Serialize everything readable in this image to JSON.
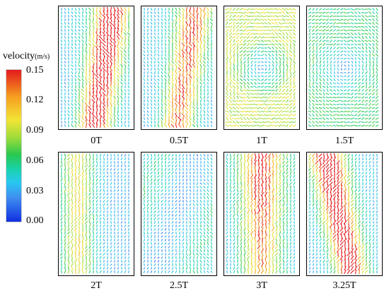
{
  "legend": {
    "title": "velocity",
    "unit": "(m/s)",
    "ticks": [
      "0.15",
      "0.12",
      "0.09",
      "0.06",
      "0.03",
      "0.00"
    ],
    "colors": [
      "#1030e0",
      "#3f8ff0",
      "#28c8f0",
      "#19d2b0",
      "#28c850",
      "#9bdc3a",
      "#f2e436",
      "#f6a020",
      "#e31a1c"
    ],
    "min": 0.0,
    "max": 0.15
  },
  "panels": [
    {
      "label": "0T",
      "pattern": "right-jet",
      "level": 0.95
    },
    {
      "label": "0.5T",
      "pattern": "right-jet",
      "level": 0.75
    },
    {
      "label": "1T",
      "pattern": "vortex",
      "level": 0.55
    },
    {
      "label": "1.5T",
      "pattern": "vortex",
      "level": 0.35
    },
    {
      "label": "2T",
      "pattern": "left-band",
      "level": 0.55
    },
    {
      "label": "2.5T",
      "pattern": "uniform",
      "level": 0.4
    },
    {
      "label": "3T",
      "pattern": "center-band",
      "level": 0.7
    },
    {
      "label": "3.25T",
      "pattern": "left-jet",
      "level": 0.95
    }
  ]
}
